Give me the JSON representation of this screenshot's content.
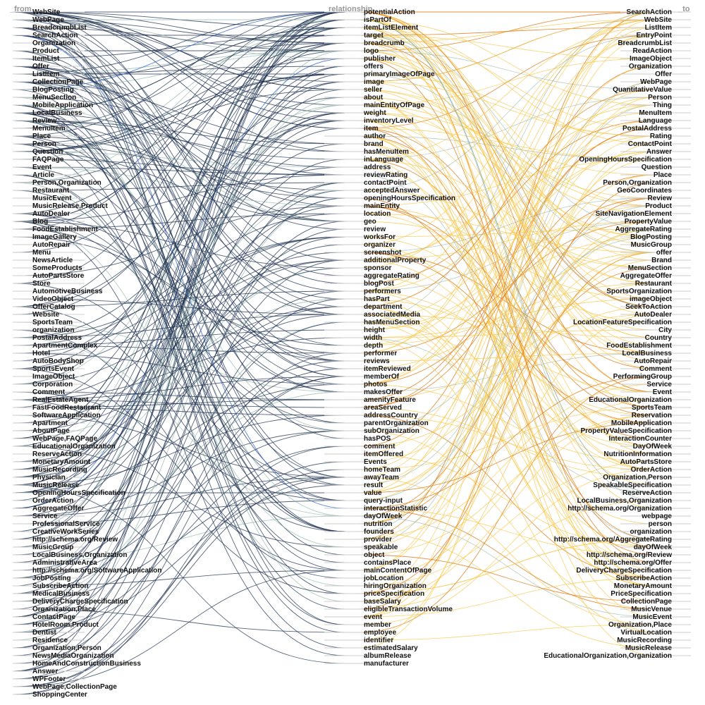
{
  "headers": {
    "from": "_from",
    "relationship": "relationship",
    "to": "_to"
  },
  "colors": {
    "from_links": "#1f3150",
    "from_links_alt": "#7fa89a",
    "from_links_blue": "#3366cc",
    "to_links": "#f8c74a",
    "to_links_dark": "#e07b1a",
    "to_links_alt": "#7fa89a"
  },
  "from_nodes": [
    "WebSite",
    "WebPage",
    "BreadcrumbList",
    "SearchAction",
    "Organization",
    "Product",
    "ItemList",
    "Offer",
    "ListItem",
    "CollectionPage",
    "BlogPosting",
    "MenuSection",
    "MobileApplication",
    "LocalBusiness",
    "Review",
    "MenuItem",
    "Place",
    "Person",
    "Question",
    "FAQPage",
    "Event",
    "Article",
    "Person,Organization",
    "Restaurant",
    "MusicEvent",
    "MusicRelease,Product",
    "AutoDealer",
    "Blog",
    "FoodEstablishment",
    "ImageGallery",
    "AutoRepair",
    "Menu",
    "NewsArticle",
    "SomeProducts",
    "AutoPartsStore",
    "Store",
    "AutomotiveBusiness",
    "VideoObject",
    "OfferCatalog",
    "Website",
    "SportsTeam",
    "organization",
    "PostalAddress",
    "ApartmentComplex",
    "Hotel",
    "AutoBodyShop",
    "SportsEvent",
    "ImageObject",
    "Corporation",
    "Comment",
    "RealEstateAgent",
    "FastFoodRestaurant",
    "SoftwareApplication",
    "Apartment",
    "AboutPage",
    "WebPage,FAQPage",
    "EducationalOrganization",
    "ReserveAction",
    "MonetaryAmount",
    "MusicRecording",
    "Physician",
    "MusicRelease",
    "OpeningHoursSpecification",
    "OrderAction",
    "AggregateOffer",
    "Service",
    "ProfessionalService",
    "CreativeWorkSeries",
    "http://schema.org/Review",
    "MusicGroup",
    "LocalBusiness,Organization",
    "AdministrativeArea",
    "http://schema.org/SoftwareApplication",
    "JobPosting",
    "SubscribeAction",
    "MedicalBusiness",
    "DeliveryChargeSpecification",
    "Organization,Place",
    "ContactPage",
    "HotelRoom,Product",
    "Dentist",
    "Residence",
    "Organization,Person",
    "NewsMediaOrganization",
    "HomeAndConstructionBusiness",
    "Answer",
    "WPFooter",
    "WebPage,CollectionPage",
    "ShoppingCenter"
  ],
  "relationship_nodes": [
    "potentialAction",
    "isPartOf",
    "itemListElement",
    "target",
    "breadcrumb",
    "logo",
    "publisher",
    "offers",
    "primaryImageOfPage",
    "image",
    "seller",
    "about",
    "mainEntityOfPage",
    "weight",
    "inventoryLevel",
    "item",
    "author",
    "brand",
    "hasMenuItem",
    "inLanguage",
    "address",
    "reviewRating",
    "contactPoint",
    "acceptedAnswer",
    "openingHoursSpecification",
    "mainEntity",
    "location",
    "geo",
    "review",
    "worksFor",
    "organizer",
    "screenshot",
    "additionalProperty",
    "sponsor",
    "aggregateRating",
    "blogPost",
    "performers",
    "hasPart",
    "department",
    "associatedMedia",
    "hasMenuSection",
    "height",
    "width",
    "depth",
    "performer",
    "reviews",
    "itemReviewed",
    "memberOf",
    "photos",
    "makesOffer",
    "amenityFeature",
    "areaServed",
    "addressCountry",
    "parentOrganization",
    "subOrganization",
    "hasPOS",
    "comment",
    "itemOffered",
    "Events",
    "homeTeam",
    "awayTeam",
    "result",
    "value",
    "query-input",
    "interactionStatistic",
    "dayOfWeek",
    "nutrition",
    "founders",
    "provider",
    "speakable",
    "object",
    "containsPlace",
    "mainContentOfPage",
    "jobLocation",
    "hiringOrganization",
    "priceSpecification",
    "baseSalary",
    "eligibleTransactionVolume",
    "event",
    "member",
    "employee",
    "identifier",
    "estimatedSalary",
    "albumRelease",
    "manufacturer"
  ],
  "to_nodes": [
    "SearchAction",
    "WebSite",
    "ListItem",
    "EntryPoint",
    "BreadcrumbList",
    "ReadAction",
    "ImageObject",
    "Organization",
    "Offer",
    "WebPage",
    "QuantitativeValue",
    "Person",
    "Thing",
    "MenuItem",
    "Language",
    "PostalAddress",
    "Rating",
    "ContactPoint",
    "Answer",
    "OpeningHoursSpecification",
    "Question",
    "Place",
    "Person,Organization",
    "GeoCoordinates",
    "Review",
    "Product",
    "SiteNavigationElement",
    "PropertyValue",
    "AggregateRating",
    "BlogPosting",
    "MusicGroup",
    "offer",
    "Brand",
    "MenuSection",
    "AggregateOffer",
    "Restaurant",
    "SportsOrganization",
    "imageObject",
    "SeekToAction",
    "AutoDealer",
    "LocationFeatureSpecification",
    "City",
    "Country",
    "FoodEstablishment",
    "LocalBusiness",
    "AutoRepair",
    "Comment",
    "PerformingGroup",
    "Service",
    "Event",
    "EducationalOrganization",
    "SportsTeam",
    "Reservation",
    "MobileApplication",
    "PropertyValueSpecification",
    "InteractionCounter",
    "DayOfWeek",
    "NutritionInformation",
    "AutoPartsStore",
    "OrderAction",
    "Organization,Person",
    "SpeakableSpecification",
    "ReserveAction",
    "LocalBusiness,Organization",
    "http://schema.org/Organization",
    "webpage",
    "person",
    "organization",
    "http://schema.org/AggregateRating",
    "dayOfWeek",
    "http://schema.org/Review",
    "http://schema.org/Offer",
    "DeliveryChargeSpecification",
    "SubscribeAction",
    "MonetaryAmount",
    "PriceSpecification",
    "CollectionPage",
    "MusicVenue",
    "MusicEvent",
    "Organization,Place",
    "VirtualLocation",
    "MusicRecording",
    "MusicRelease",
    "EducationalOrganization,Organization"
  ]
}
